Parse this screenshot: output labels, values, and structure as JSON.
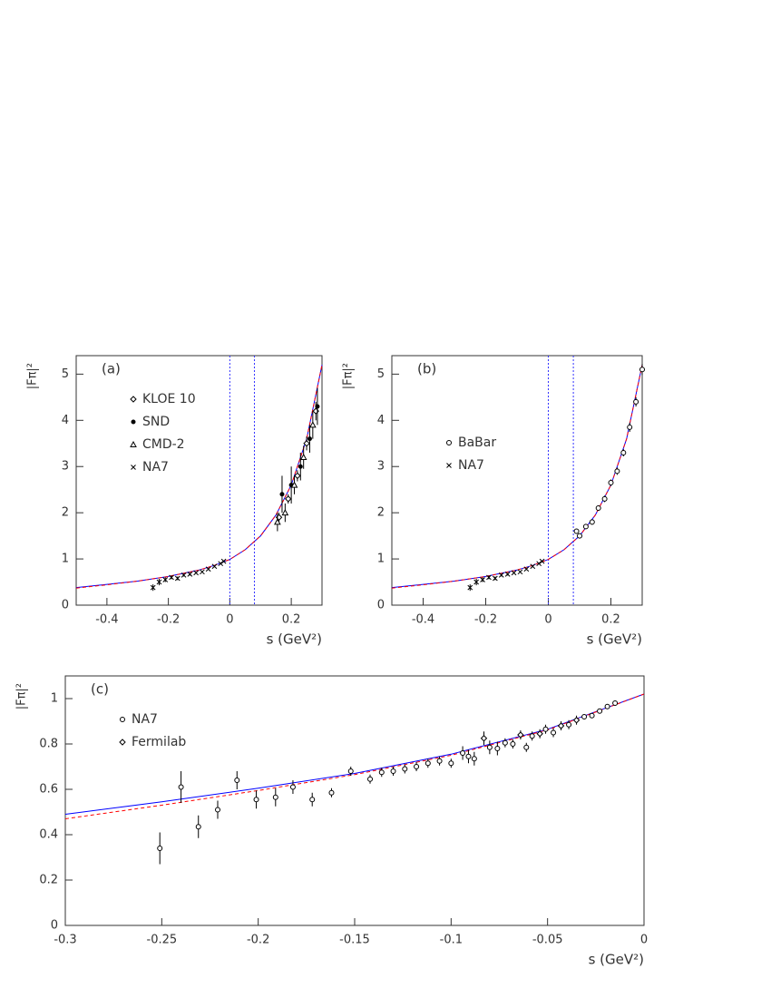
{
  "chart_data": [
    {
      "type": "scatter",
      "annotation": "(a)",
      "xlabel": "s (GeV²)",
      "ylabel": "|Fπ|²",
      "xlim": [
        -0.5,
        0.3
      ],
      "ylim": [
        0,
        5.4
      ],
      "xticks": [
        -0.4,
        -0.2,
        0,
        0.2
      ],
      "yticks": [
        0,
        1,
        2,
        3,
        4,
        5
      ],
      "vlines": [
        0,
        0.08
      ],
      "vline_color": "#3333ff",
      "legend": "upper left",
      "series": [
        {
          "line": true,
          "color": "#0000ff",
          "dash": false,
          "x": [
            -0.5,
            -0.4,
            -0.3,
            -0.2,
            -0.1,
            -0.05,
            0,
            0.05,
            0.1,
            0.15,
            0.2,
            0.25,
            0.3
          ],
          "values": [
            0.38,
            0.45,
            0.52,
            0.62,
            0.76,
            0.86,
            0.99,
            1.2,
            1.5,
            1.95,
            2.6,
            3.6,
            5.2
          ]
        },
        {
          "line": true,
          "color": "#ff0000",
          "dash": true,
          "x": [
            -0.5,
            -0.4,
            -0.3,
            -0.2,
            -0.1,
            -0.05,
            0,
            0.05,
            0.1,
            0.15,
            0.2,
            0.25,
            0.3
          ],
          "values": [
            0.37,
            0.44,
            0.52,
            0.62,
            0.76,
            0.86,
            0.99,
            1.2,
            1.5,
            1.95,
            2.6,
            3.6,
            5.2
          ]
        },
        {
          "name": "KLOE 10",
          "marker": "diamond",
          "color": "#000000",
          "x": [
            0.16,
            0.19,
            0.22,
            0.25,
            0.28
          ],
          "values": [
            1.9,
            2.3,
            2.8,
            3.5,
            4.2
          ],
          "errors": [
            0.1,
            0.1,
            0.12,
            0.15,
            0.2
          ]
        },
        {
          "name": "SND",
          "marker": "dot",
          "color": "#000000",
          "x": [
            0.17,
            0.2,
            0.23,
            0.26,
            0.285
          ],
          "values": [
            2.4,
            2.6,
            3.0,
            3.6,
            4.3
          ],
          "errors": [
            0.4,
            0.4,
            0.3,
            0.3,
            0.4
          ]
        },
        {
          "name": "CMD-2",
          "marker": "triangle",
          "color": "#000000",
          "x": [
            0.155,
            0.18,
            0.21,
            0.24,
            0.27
          ],
          "values": [
            1.8,
            2.0,
            2.6,
            3.2,
            3.9
          ],
          "errors": [
            0.2,
            0.2,
            0.2,
            0.25,
            0.3
          ]
        },
        {
          "name": "NA7",
          "marker": "cross",
          "color": "#000000",
          "x": [
            -0.25,
            -0.23,
            -0.21,
            -0.19,
            -0.17,
            -0.15,
            -0.13,
            -0.11,
            -0.09,
            -0.07,
            -0.05,
            -0.03,
            -0.02
          ],
          "values": [
            0.38,
            0.5,
            0.55,
            0.6,
            0.58,
            0.65,
            0.67,
            0.7,
            0.72,
            0.78,
            0.84,
            0.9,
            0.95
          ],
          "errors": [
            0.07,
            0.07,
            0.05,
            0.04,
            0.04,
            0.03,
            0.03,
            0.02,
            0.02,
            0.02,
            0.02,
            0.02,
            0.02
          ]
        }
      ]
    },
    {
      "type": "scatter",
      "annotation": "(b)",
      "xlabel": "s (GeV²)",
      "ylabel": "|Fπ|²",
      "xlim": [
        -0.5,
        0.3
      ],
      "ylim": [
        0,
        5.4
      ],
      "xticks": [
        -0.4,
        -0.2,
        0,
        0.2
      ],
      "yticks": [
        0,
        1,
        2,
        3,
        4,
        5
      ],
      "vlines": [
        0,
        0.08
      ],
      "vline_color": "#3333ff",
      "legend": "center left",
      "series": [
        {
          "line": true,
          "color": "#0000ff",
          "dash": false,
          "x": [
            -0.5,
            -0.4,
            -0.3,
            -0.2,
            -0.1,
            -0.05,
            0,
            0.05,
            0.1,
            0.15,
            0.2,
            0.25,
            0.3
          ],
          "values": [
            0.38,
            0.45,
            0.52,
            0.62,
            0.76,
            0.86,
            0.99,
            1.2,
            1.5,
            1.95,
            2.6,
            3.6,
            5.2
          ]
        },
        {
          "line": true,
          "color": "#ff0000",
          "dash": true,
          "x": [
            -0.5,
            -0.4,
            -0.3,
            -0.2,
            -0.1,
            -0.05,
            0,
            0.05,
            0.1,
            0.15,
            0.2,
            0.25,
            0.3
          ],
          "values": [
            0.37,
            0.44,
            0.52,
            0.62,
            0.76,
            0.86,
            0.99,
            1.2,
            1.5,
            1.95,
            2.6,
            3.6,
            5.2
          ]
        },
        {
          "name": "BaBar",
          "marker": "circle",
          "color": "#000000",
          "x": [
            0.09,
            0.1,
            0.12,
            0.14,
            0.16,
            0.18,
            0.2,
            0.22,
            0.24,
            0.26,
            0.28,
            0.3
          ],
          "values": [
            1.6,
            1.5,
            1.7,
            1.8,
            2.1,
            2.3,
            2.65,
            2.9,
            3.3,
            3.85,
            4.4,
            5.1
          ],
          "errors": [
            0.05,
            0.05,
            0.05,
            0.06,
            0.06,
            0.07,
            0.07,
            0.08,
            0.08,
            0.1,
            0.1,
            0.12
          ]
        },
        {
          "name": "NA7",
          "marker": "cross",
          "color": "#000000",
          "x": [
            -0.25,
            -0.23,
            -0.21,
            -0.19,
            -0.17,
            -0.15,
            -0.13,
            -0.11,
            -0.09,
            -0.07,
            -0.05,
            -0.03,
            -0.02
          ],
          "values": [
            0.38,
            0.5,
            0.55,
            0.6,
            0.58,
            0.65,
            0.67,
            0.7,
            0.72,
            0.78,
            0.84,
            0.9,
            0.95
          ],
          "errors": [
            0.07,
            0.07,
            0.05,
            0.04,
            0.04,
            0.03,
            0.03,
            0.02,
            0.02,
            0.02,
            0.02,
            0.02,
            0.02
          ]
        }
      ]
    },
    {
      "type": "scatter",
      "annotation": "(c)",
      "xlabel": "s (GeV²)",
      "ylabel": "|Fπ|²",
      "xlim": [
        -0.3,
        0
      ],
      "ylim": [
        0,
        1.1
      ],
      "xticks": [
        -0.3,
        -0.25,
        -0.2,
        -0.15,
        -0.1,
        -0.05,
        0
      ],
      "yticks": [
        0,
        0.2,
        0.4,
        0.6,
        0.8,
        1
      ],
      "vlines": [],
      "vline_color": "#3333ff",
      "legend": "upper left",
      "series": [
        {
          "line": true,
          "color": "#0000ff",
          "dash": false,
          "x": [
            -0.3,
            -0.25,
            -0.2,
            -0.15,
            -0.1,
            -0.05,
            0
          ],
          "values": [
            0.49,
            0.545,
            0.605,
            0.67,
            0.755,
            0.865,
            1.02
          ]
        },
        {
          "line": true,
          "color": "#ff0000",
          "dash": true,
          "x": [
            -0.3,
            -0.25,
            -0.2,
            -0.15,
            -0.1,
            -0.05,
            0
          ],
          "values": [
            0.47,
            0.53,
            0.595,
            0.665,
            0.75,
            0.862,
            1.02
          ]
        },
        {
          "name": "NA7",
          "marker": "circle",
          "color": "#000000",
          "x": [
            -0.251,
            -0.24,
            -0.231,
            -0.221,
            -0.211,
            -0.201,
            -0.191,
            -0.182,
            -0.172,
            -0.162,
            -0.152,
            -0.142,
            -0.136,
            -0.13,
            -0.124,
            -0.118,
            -0.112,
            -0.106,
            -0.1,
            -0.094,
            -0.091,
            -0.088,
            -0.08,
            -0.076,
            -0.072,
            -0.068,
            -0.061,
            -0.058,
            -0.051,
            -0.047,
            -0.039,
            -0.031,
            -0.027,
            -0.023,
            -0.019,
            -0.015
          ],
          "values": [
            0.34,
            0.61,
            0.435,
            0.51,
            0.64,
            0.555,
            0.565,
            0.61,
            0.555,
            0.585,
            0.68,
            0.645,
            0.675,
            0.68,
            0.69,
            0.7,
            0.715,
            0.725,
            0.715,
            0.76,
            0.745,
            0.735,
            0.785,
            0.78,
            0.805,
            0.8,
            0.785,
            0.835,
            0.865,
            0.85,
            0.885,
            0.92,
            0.925,
            0.945,
            0.965,
            0.98
          ],
          "errors": [
            0.07,
            0.07,
            0.05,
            0.04,
            0.04,
            0.04,
            0.04,
            0.03,
            0.03,
            0.02,
            0.02,
            0.02,
            0.02,
            0.02,
            0.02,
            0.02,
            0.02,
            0.02,
            0.02,
            0.03,
            0.03,
            0.03,
            0.03,
            0.03,
            0.02,
            0.02,
            0.02,
            0.02,
            0.02,
            0.02,
            0.02,
            0.01,
            0.01,
            0.01,
            0.01,
            0.01
          ]
        },
        {
          "name": "Fermilab",
          "marker": "diamond",
          "color": "#000000",
          "x": [
            -0.083,
            -0.064,
            -0.054,
            -0.043,
            -0.035
          ],
          "values": [
            0.825,
            0.84,
            0.845,
            0.88,
            0.905
          ],
          "errors": [
            0.03,
            0.02,
            0.02,
            0.02,
            0.02
          ]
        }
      ]
    }
  ]
}
